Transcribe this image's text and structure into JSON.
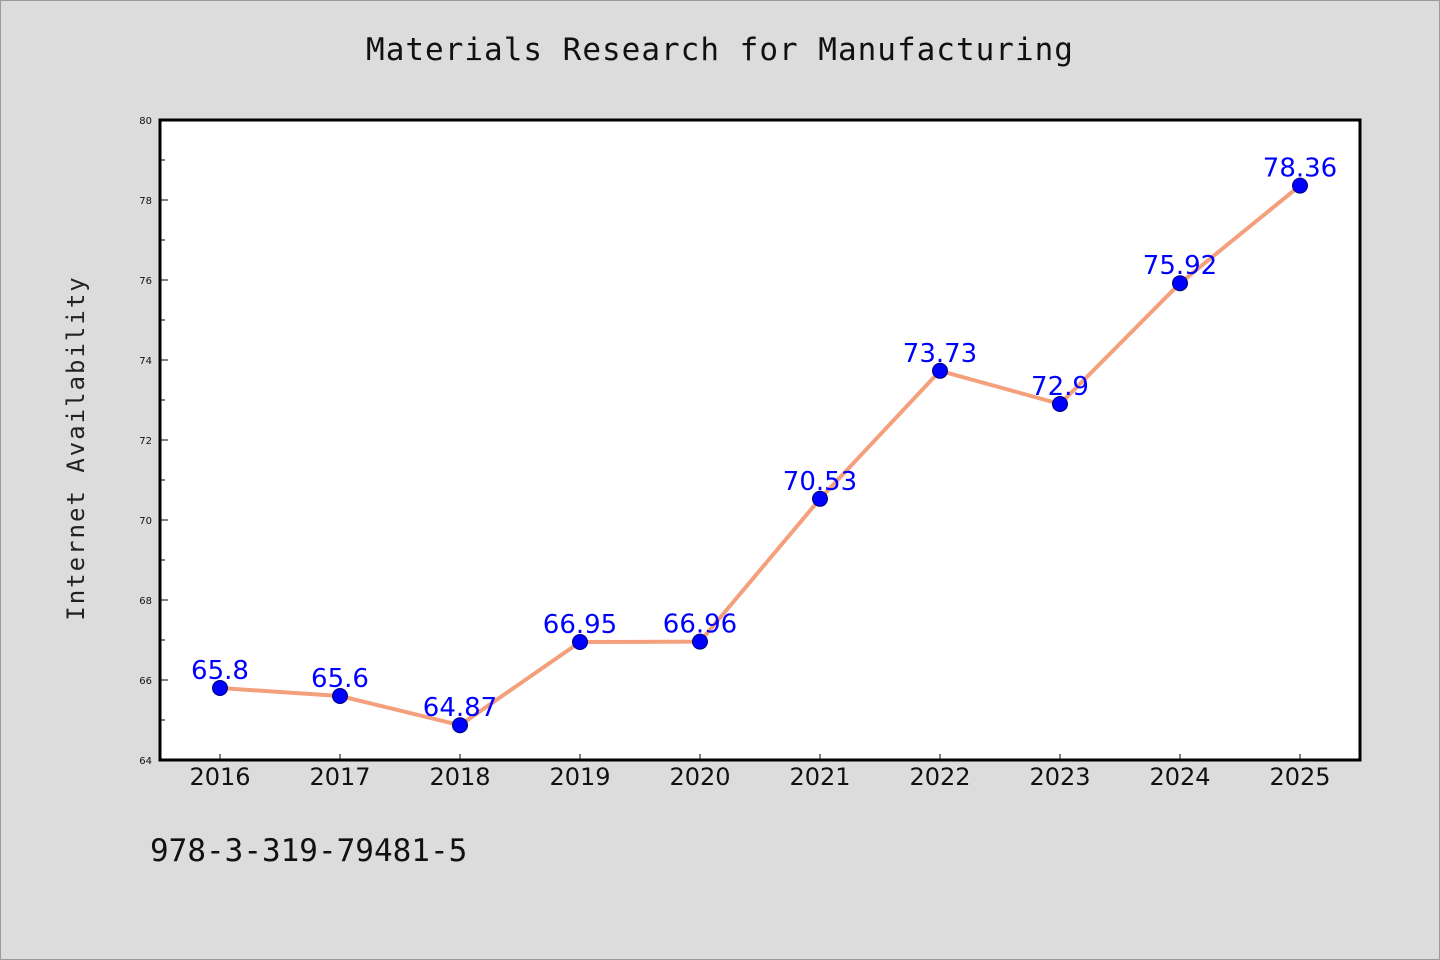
{
  "chart_data": {
    "type": "line",
    "title": "Materials Research for Manufacturing",
    "xlabel": "",
    "ylabel": "Internet Availability",
    "categories": [
      "2016",
      "2017",
      "2018",
      "2019",
      "2020",
      "2021",
      "2022",
      "2023",
      "2024",
      "2025"
    ],
    "series": [
      {
        "values": [
          65.8,
          65.6,
          64.87,
          66.95,
          66.96,
          70.53,
          73.73,
          72.9,
          75.92,
          78.36
        ],
        "labels": [
          "65.8",
          "65.6",
          "64.87",
          "66.95",
          "66.96",
          "70.53",
          "73.73",
          "72.9",
          "75.92",
          "78.36"
        ]
      }
    ],
    "ylim": [
      64,
      80
    ],
    "yticks": [
      "64",
      "66",
      "68",
      "70",
      "72",
      "74",
      "76",
      "78",
      "80"
    ],
    "grid": false,
    "legend": "none",
    "colors": {
      "line": "#f4a07c",
      "marker": "#0000ff",
      "label": "#0000ff",
      "background": "#dcdcdc",
      "plot_background": "#ffffff"
    }
  },
  "footer": {
    "isbn": "978-3-319-79481-5"
  }
}
